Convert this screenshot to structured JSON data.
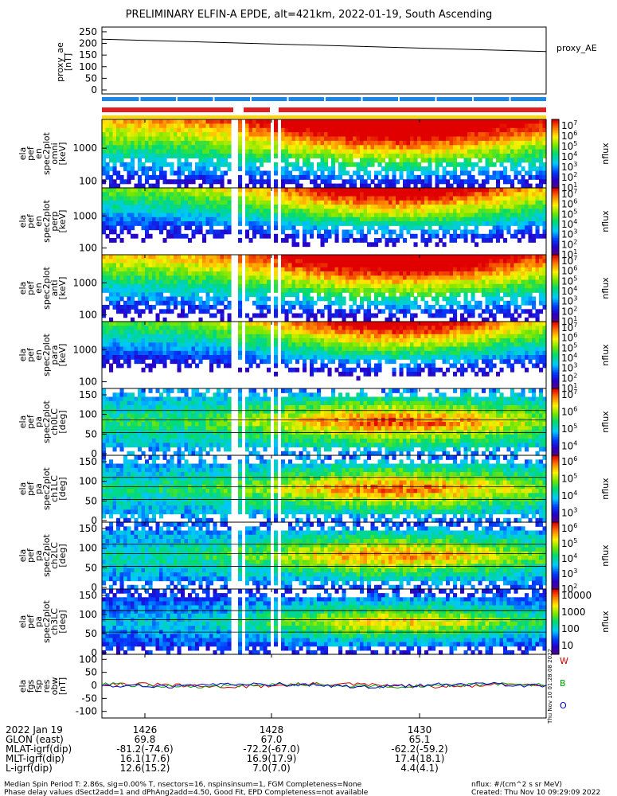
{
  "title": "PRELIMINARY ELFIN-A EPDE, alt=421km, 2022-01-19, South Ascending",
  "side_stamp": "Thu Nov 10 01:28:08 2022",
  "colors": {
    "status_bar_top": "#1a86e8",
    "status_bar_mid": "#e02020",
    "status_bar_bottom": "#ffd800",
    "fgs_w": "#d00000",
    "fgs_b": "#00a000",
    "fgs_o": "#0000d0"
  },
  "chart_data": [
    {
      "type": "line",
      "ylabel": [
        "proxy_ae",
        "[nT]"
      ],
      "yticks": [
        "250",
        "200",
        "150",
        "100",
        "50",
        "0"
      ],
      "ylim": [
        0,
        260
      ],
      "legend": "proxy_AE",
      "series": [
        {
          "name": "proxy_AE",
          "x": [
            0,
            1
          ],
          "values": [
            218,
            165
          ]
        }
      ]
    },
    {
      "type": "heatmap",
      "ylabel": [
        "ela",
        "pef",
        "en",
        "spec2plot",
        "omni",
        "[keV]"
      ],
      "yticks": [
        "1000",
        "100"
      ],
      "scale": "log",
      "cbar_ticks": [
        "10^7",
        "10^6",
        "10^5",
        "10^4",
        "10^3",
        "10^2",
        "10^1"
      ],
      "cbar_label": "nflux"
    },
    {
      "type": "heatmap",
      "ylabel": [
        "ela",
        "pef",
        "en",
        "spec2plot",
        "perp",
        "[keV]"
      ],
      "yticks": [
        "1000",
        "100"
      ],
      "scale": "log",
      "cbar_ticks": [
        "10^7",
        "10^6",
        "10^5",
        "10^4",
        "10^3",
        "10^2",
        "10^1"
      ],
      "cbar_label": "nflux"
    },
    {
      "type": "heatmap",
      "ylabel": [
        "ela",
        "pef",
        "en",
        "spec2plot",
        "anti",
        "[keV]"
      ],
      "yticks": [
        "1000",
        "100"
      ],
      "scale": "log",
      "cbar_ticks": [
        "10^7",
        "10^6",
        "10^5",
        "10^4",
        "10^3",
        "10^2",
        "10^1"
      ],
      "cbar_label": "nflux"
    },
    {
      "type": "heatmap",
      "ylabel": [
        "ela",
        "pef",
        "en",
        "spec2plot",
        "para",
        "[keV]"
      ],
      "yticks": [
        "1000",
        "100"
      ],
      "scale": "log",
      "cbar_ticks": [
        "10^7",
        "10^6",
        "10^5",
        "10^4",
        "10^3",
        "10^2",
        "10^1"
      ],
      "cbar_label": "nflux"
    },
    {
      "type": "heatmap",
      "ylabel": [
        "ela",
        "pef",
        "pa",
        "spec2plot",
        "ch0LC",
        "[deg]"
      ],
      "yticks": [
        "150",
        "100",
        "50",
        "0"
      ],
      "scale": "linear",
      "cbar_ticks": [
        "10^7",
        "10^6",
        "10^5",
        "10^4"
      ],
      "cbar_label": "nflux"
    },
    {
      "type": "heatmap",
      "ylabel": [
        "ela",
        "pef",
        "pa",
        "spec2plot",
        "ch1LC",
        "[deg]"
      ],
      "yticks": [
        "150",
        "100",
        "50",
        "0"
      ],
      "scale": "linear",
      "cbar_ticks": [
        "10^6",
        "10^5",
        "10^4",
        "10^3"
      ],
      "cbar_label": "nflux"
    },
    {
      "type": "heatmap",
      "ylabel": [
        "ela",
        "pef",
        "pa",
        "spec2plot",
        "ch2LC",
        "[deg]"
      ],
      "yticks": [
        "150",
        "100",
        "50",
        "0"
      ],
      "scale": "linear",
      "cbar_ticks": [
        "10^6",
        "10^5",
        "10^4",
        "10^3",
        "10^2"
      ],
      "cbar_label": "nflux"
    },
    {
      "type": "heatmap",
      "ylabel": [
        "ela",
        "pef",
        "pa",
        "spec2plot",
        "ch3LC",
        "[deg]"
      ],
      "yticks": [
        "150",
        "100",
        "50",
        "0"
      ],
      "scale": "linear",
      "cbar_ticks": [
        "10000",
        "1000",
        "100",
        "10"
      ],
      "cbar_label": "nflux"
    },
    {
      "type": "line",
      "ylabel": [
        "ela",
        "fgs",
        "fsp",
        "res",
        "obw",
        "[nT]"
      ],
      "yticks": [
        "100",
        "50",
        "0",
        "-50",
        "-100"
      ],
      "ylim": [
        -110,
        110
      ],
      "legend_labels": [
        "W",
        "B",
        "O"
      ]
    }
  ],
  "x_axis": {
    "ticks": [
      "1426",
      "1428",
      "1430"
    ],
    "rows": [
      {
        "label": "2022 Jan 19",
        "values": [
          "1426",
          "1428",
          "1430"
        ]
      },
      {
        "label": "GLON (east)",
        "values": [
          "69.8",
          "67.0",
          "65.1"
        ]
      },
      {
        "label": "MLAT-igrf(dip)",
        "values": [
          "-81.2(-74.6)",
          "-72.2(-67.0)",
          "-62.2(-59.2)"
        ]
      },
      {
        "label": "MLT-igrf(dip)",
        "values": [
          "16.1(17.6)",
          "16.9(17.9)",
          "17.4(18.1)"
        ]
      },
      {
        "label": "L-igrf(dip)",
        "values": [
          "12.6(15.2)",
          "7.0(7.0)",
          "4.4(4.1)"
        ]
      }
    ]
  },
  "footer": {
    "line1": "Median Spin Period T: 2.86s, sig=0.00% T, nsectors=16, nspinsinsum=1, FGM Completeness=None",
    "line2": "Phase delay values dSect2add=1 and dPhAng2add=4.50, Good Fit, EPD Completeness=not available",
    "units": "nflux: #/(cm^2 s sr MeV)",
    "created": "Created: Thu Nov 10 09:29:09 2022"
  }
}
